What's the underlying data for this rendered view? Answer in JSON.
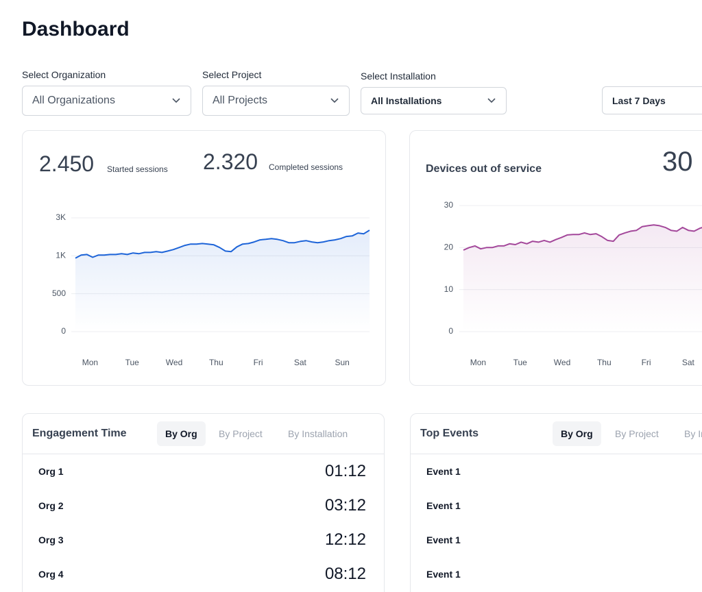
{
  "header": {
    "title": "Dashboard"
  },
  "filters": [
    {
      "label": "Select Organization",
      "value": "All Organizations"
    },
    {
      "label": "Select Project",
      "value": "All Projects"
    },
    {
      "label": "Select Installation",
      "value": "All Installations"
    },
    {
      "value": "Last 7 Days"
    }
  ],
  "sessions": [
    {
      "value": "2.450",
      "label": "Started sessions"
    },
    {
      "value": "2.320",
      "label": "Completed sessions"
    }
  ],
  "devices": {
    "label": "Devices out of service",
    "count": "30"
  },
  "chart_data": [
    {
      "type": "area",
      "color": "#1d64d8",
      "grid": true,
      "ylim": [
        0,
        3000
      ],
      "yticks": [
        0,
        500,
        {
          "value": 1000,
          "label": "1K"
        },
        {
          "value": 3000,
          "label": "3K"
        }
      ],
      "xticks": [
        "Mon",
        "Tue",
        "Wed",
        "Thu",
        "Fri",
        "Sat",
        "Sun"
      ],
      "values": [
        970,
        1040,
        1070,
        980,
        1040,
        1040,
        1070,
        1070,
        1110,
        1070,
        1150,
        1110,
        1180,
        1180,
        1220,
        1180,
        1250,
        1330,
        1440,
        1550,
        1620,
        1620,
        1650,
        1620,
        1580,
        1440,
        1250,
        1220,
        1470,
        1620,
        1650,
        1730,
        1840,
        1870,
        1910,
        1870,
        1800,
        1690,
        1690,
        1760,
        1800,
        1730,
        1690,
        1730,
        1800,
        1840,
        1910,
        2020,
        2050,
        2200,
        2160,
        2350
      ]
    },
    {
      "type": "area",
      "color": "#a3479a",
      "grid": true,
      "ylim": [
        0,
        30
      ],
      "yticks": [
        0,
        10,
        20,
        30
      ],
      "xticks": [
        "Mon",
        "Tue",
        "Wed",
        "Thu",
        "Fri",
        "Sat"
      ],
      "values": [
        19.4,
        20,
        20.4,
        19.7,
        20,
        20,
        20.4,
        20.4,
        20.9,
        20.7,
        21.3,
        20.9,
        21.5,
        21.3,
        21.7,
        21.3,
        21.9,
        22.4,
        23,
        23.1,
        23.1,
        23.5,
        23.1,
        23.3,
        22.6,
        21.7,
        21.5,
        23,
        23.5,
        23.9,
        24.1,
        25,
        25.2,
        25.4,
        25.2,
        24.8,
        24.1,
        23.9,
        24.8,
        24.1,
        23.9,
        24.6,
        25
      ]
    }
  ],
  "engagement": {
    "title": "Engagement Time",
    "tabs": [
      "By Org",
      "By Project",
      "By Installation"
    ],
    "rows": [
      [
        "Org 1",
        "01:12"
      ],
      [
        "Org 2",
        "03:12"
      ],
      [
        "Org 3",
        "12:12"
      ],
      [
        "Org 4",
        "08:12"
      ]
    ]
  },
  "events": {
    "title": "Top Events",
    "tabs": [
      "By Org",
      "By Project",
      "By Installation"
    ],
    "rows": [
      "Event 1",
      "Event 1",
      "Event 1",
      "Event 1"
    ]
  }
}
